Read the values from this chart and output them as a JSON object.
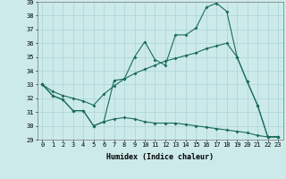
{
  "xlabel": "Humidex (Indice chaleur)",
  "x": [
    0,
    1,
    2,
    3,
    4,
    5,
    6,
    7,
    8,
    9,
    10,
    11,
    12,
    13,
    14,
    15,
    16,
    17,
    18,
    19,
    20,
    21,
    22,
    23
  ],
  "line1": [
    33.0,
    32.2,
    31.9,
    31.1,
    31.1,
    30.0,
    30.3,
    30.5,
    30.6,
    30.5,
    30.3,
    30.2,
    30.2,
    30.2,
    30.1,
    30.0,
    29.9,
    29.8,
    29.7,
    29.6,
    29.5,
    29.3,
    29.2,
    29.2
  ],
  "line2": [
    33.0,
    32.2,
    31.9,
    31.1,
    31.1,
    30.0,
    30.3,
    33.3,
    33.4,
    35.0,
    36.1,
    34.8,
    34.4,
    36.6,
    36.6,
    37.1,
    38.6,
    38.9,
    38.3,
    35.0,
    33.2,
    31.5,
    29.2,
    29.2
  ],
  "line3": [
    33.0,
    32.5,
    32.2,
    32.0,
    31.8,
    31.5,
    32.3,
    32.9,
    33.4,
    33.8,
    34.1,
    34.4,
    34.7,
    34.9,
    35.1,
    35.3,
    35.6,
    35.8,
    36.0,
    35.0,
    33.2,
    31.5,
    29.2,
    29.2
  ],
  "ylim": [
    29,
    39
  ],
  "yticks": [
    29,
    30,
    31,
    32,
    33,
    34,
    35,
    36,
    37,
    38,
    39
  ],
  "xticks": [
    0,
    1,
    2,
    3,
    4,
    5,
    6,
    7,
    8,
    9,
    10,
    11,
    12,
    13,
    14,
    15,
    16,
    17,
    18,
    19,
    20,
    21,
    22,
    23
  ],
  "xlim": [
    -0.5,
    23.5
  ],
  "line_color": "#1a6b5a",
  "bg_color": "#cceaea",
  "grid_color": "#aad4d4",
  "spine_color": "#888888",
  "xlabel_fontsize": 6.0,
  "tick_fontsize": 5.0,
  "marker_size": 2.0,
  "line_width": 0.8
}
